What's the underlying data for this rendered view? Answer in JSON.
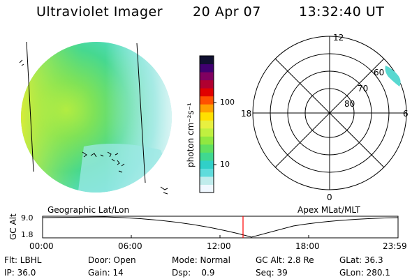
{
  "header": {
    "instrument": "Ultraviolet Imager",
    "date": "20 Apr 07",
    "time": "13:32:40 UT"
  },
  "image_panel": {
    "label": "Geographic Lat/Lon"
  },
  "color_bar": {
    "unit": "photon cm⁻²s⁻¹",
    "ticks": [
      "100",
      "10"
    ],
    "colors": [
      "#f0f8ff",
      "#c0ecec",
      "#60dcdc",
      "#30d0c8",
      "#40d890",
      "#60e060",
      "#90e840",
      "#c0f040",
      "#e8f040",
      "#ffe000",
      "#ffa000",
      "#ff5000",
      "#e00000",
      "#b00030",
      "#800060",
      "#400070",
      "#101030"
    ]
  },
  "polar_plot": {
    "label": "Apex MLat/MLT",
    "mlt_labels": {
      "top": "12",
      "left": "18",
      "right": "6",
      "bottom": "0"
    },
    "lat_labels": [
      "60",
      "70",
      "80"
    ]
  },
  "altitude_track": {
    "axis_label": "GC Alt",
    "y_ticks": [
      "9.0",
      "1.8"
    ],
    "x_ticks": [
      "00:00",
      "06:00",
      "12:00",
      "18:00",
      "23:59"
    ],
    "marker_color": "#ff0000"
  },
  "footer": {
    "row1": {
      "flt": "Flt: LBHL",
      "door": "Door: Open",
      "mode": "Mode: Normal",
      "gc_alt": "GC Alt: 2.8 Re",
      "glat": "GLat:  36.3"
    },
    "row2": {
      "ip": "IP: 36.0",
      "gain": "Gain: 14",
      "dsp": "Dsp:    0.9",
      "seq": "Seq: 39",
      "glon": "GLon: 280.1"
    }
  }
}
